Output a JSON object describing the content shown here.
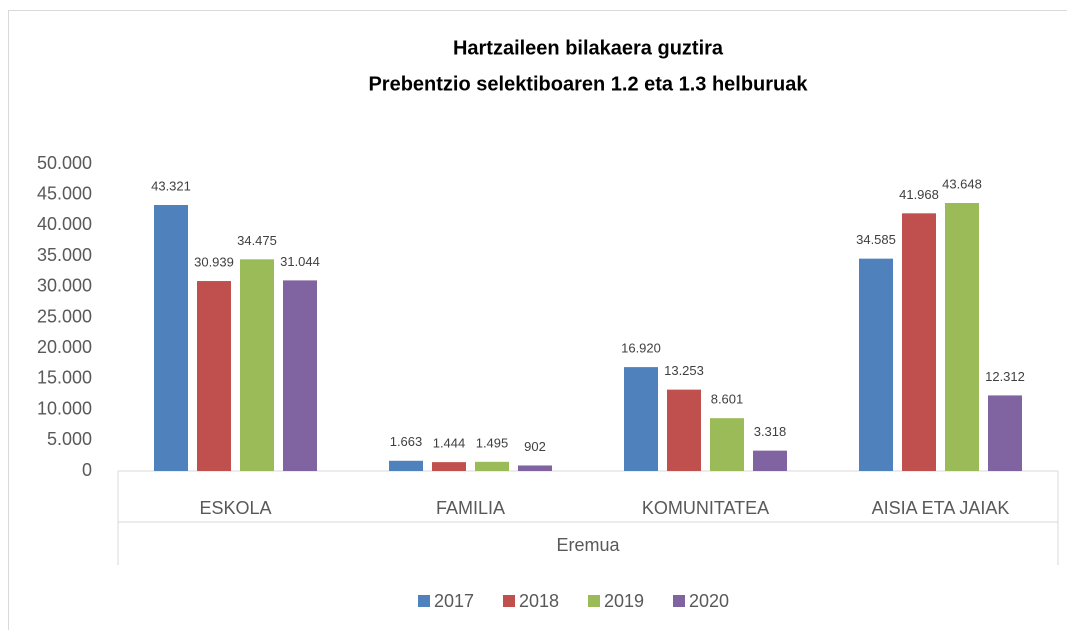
{
  "chart_data": {
    "type": "bar",
    "title": [
      "Hartzaileen bilakaera guztira",
      "Prebentzio selektiboaren 1.2 eta 1.3 helburuak"
    ],
    "x_label": "Eremua",
    "categories": [
      "ESKOLA",
      "FAMILIA",
      "KOMUNITATEA",
      "AISIA ETA JAIAK"
    ],
    "series": [
      {
        "name": "2017",
        "color": "#4f81bd",
        "values": [
          43321,
          1663,
          16920,
          34585
        ],
        "value_labels": [
          "43.321",
          "1.663",
          "16.920",
          "34.585"
        ]
      },
      {
        "name": "2018",
        "color": "#c0504d",
        "values": [
          30939,
          1444,
          13253,
          41968
        ],
        "value_labels": [
          "30.939",
          "1.444",
          "13.253",
          "41.968"
        ]
      },
      {
        "name": "2019",
        "color": "#9bbb59",
        "values": [
          34475,
          1495,
          8601,
          43648
        ],
        "value_labels": [
          "34.475",
          "1.495",
          "8.601",
          "43.648"
        ]
      },
      {
        "name": "2020",
        "color": "#8064a2",
        "values": [
          31044,
          902,
          3318,
          12312
        ],
        "value_labels": [
          "31.044",
          "902",
          "3.318",
          "12.312"
        ]
      }
    ],
    "ylim": [
      0,
      50000
    ],
    "yticks": [
      0,
      {
        "value": 5000,
        "label": "5.000"
      },
      {
        "value": 10000,
        "label": "10.000"
      },
      {
        "value": 15000,
        "label": "15.000"
      },
      {
        "value": 20000,
        "label": "20.000"
      },
      {
        "value": 25000,
        "label": "25.000"
      },
      {
        "value": 30000,
        "label": "30.000"
      },
      {
        "value": 35000,
        "label": "35.000"
      },
      {
        "value": 40000,
        "label": "40.000"
      },
      {
        "value": 45000,
        "label": "45.000"
      },
      {
        "value": 50000,
        "label": "50.000"
      }
    ],
    "grid": false,
    "legend": "bottom"
  }
}
